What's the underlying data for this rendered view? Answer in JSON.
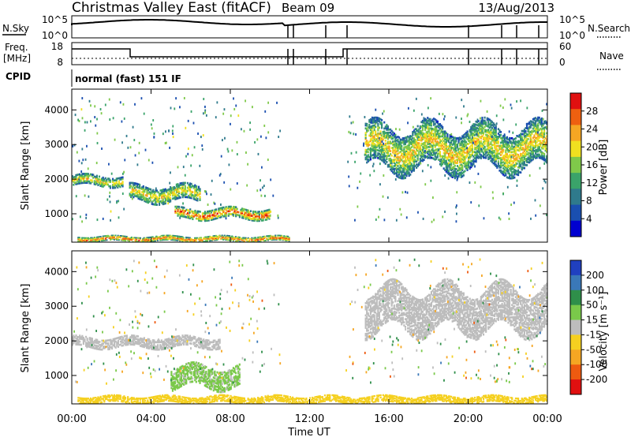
{
  "header": {
    "title": "Christmas Valley East (fitACF)",
    "beam": "Beam 09",
    "date": "13/Aug/2013"
  },
  "top_panels": {
    "nsky_label": "N.Sky",
    "nsky_ticks": [
      "10^5",
      "10^0"
    ],
    "nsearch_label": "N.Search",
    "nsearch_ticks": [
      "10^5",
      "10^0"
    ],
    "freq_label_1": "Freq.",
    "freq_label_2": "[MHz]",
    "freq_ticks": [
      "18",
      "8"
    ],
    "nave_label": "Nave",
    "nave_ticks": [
      "60",
      "0"
    ],
    "cpid_label": "CPID",
    "cpid_text": "normal (fast) 151 IF"
  },
  "chart_data": [
    {
      "type": "heatmap",
      "name": "power",
      "ylabel": "Slant Range [km]",
      "ylim": [
        180,
        4600
      ],
      "yticks": [
        "1000",
        "2000",
        "3000",
        "4000"
      ],
      "xlim": [
        0,
        24
      ],
      "colorbar": {
        "label": "Power [dB]",
        "ticks": [
          "4",
          "8",
          "12",
          "16",
          "20",
          "24",
          "28"
        ],
        "colors": [
          "#0000d0",
          "#1a4fb0",
          "#2f7a8c",
          "#3aa36a",
          "#7fc94a",
          "#f0e020",
          "#f5a623",
          "#ee6010",
          "#e01010"
        ]
      },
      "features": [
        {
          "t": [
            0.0,
            2.6
          ],
          "r": [
            1800,
            2100
          ],
          "peak": 22
        },
        {
          "t": [
            2.9,
            6.5
          ],
          "r": [
            1350,
            1800
          ],
          "peak": 22
        },
        {
          "t": [
            5.2,
            10.0
          ],
          "r": [
            850,
            1150
          ],
          "peak": 28
        },
        {
          "t": [
            0.3,
            11.0
          ],
          "r": [
            200,
            350
          ],
          "peak": 28
        },
        {
          "t": [
            14.8,
            24.0
          ],
          "r": [
            2300,
            3500
          ],
          "peak": 22
        }
      ]
    },
    {
      "type": "heatmap",
      "name": "velocity",
      "ylabel": "Slant Range [km]",
      "xlabel": "Time UT",
      "ylim": [
        180,
        4600
      ],
      "yticks": [
        "1000",
        "2000",
        "3000",
        "4000"
      ],
      "xlim": [
        0,
        24
      ],
      "xticks": [
        "00:00",
        "04:00",
        "08:00",
        "12:00",
        "16:00",
        "20:00",
        "00:00"
      ],
      "colorbar": {
        "label": "Velocity [m s⁻¹]",
        "ticks": [
          "200",
          "100",
          "50",
          "15",
          "-15",
          "-50",
          "-100",
          "-200"
        ],
        "colors": [
          "#2040c0",
          "#3a78b8",
          "#2f8f4a",
          "#7ac94a",
          "#bdbdbd",
          "#f5d020",
          "#f5a623",
          "#ee5a10",
          "#e01010"
        ]
      },
      "features": [
        {
          "t": [
            5.0,
            8.5
          ],
          "r": [
            650,
            1250
          ],
          "velocity": 40
        },
        {
          "t": [
            0.0,
            7.5
          ],
          "r": [
            1800,
            2100
          ],
          "velocity": 0
        },
        {
          "t": [
            14.8,
            24.0
          ],
          "r": [
            2300,
            3500
          ],
          "velocity": 0
        },
        {
          "t": [
            0.3,
            24.0
          ],
          "r": [
            200,
            400
          ],
          "velocity": -50
        }
      ]
    }
  ]
}
